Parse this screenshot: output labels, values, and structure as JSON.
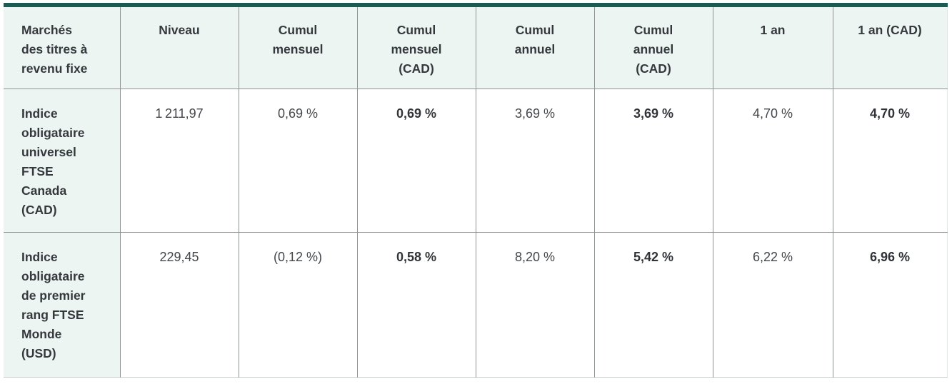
{
  "style": {
    "accent_color": "#1c5b53",
    "header_bg": "#edf5f3",
    "label_col_bg": "#edf5f3",
    "grid_color": "#8f9391",
    "bold_value_columns": [
      "Cumul mensuel (CAD)",
      "Cumul annuel (CAD)",
      "1 an (CAD)"
    ]
  },
  "table": {
    "columns": [
      "Marchés\ndes titres à\nrevenu fixe",
      "Niveau",
      "Cumul\nmensuel",
      "Cumul\nmensuel\n(CAD)",
      "Cumul\nannuel",
      "Cumul\nannuel\n(CAD)",
      "1 an",
      "1 an (CAD)"
    ],
    "rows": [
      {
        "label": "Indice\nobligataire\nuniversel\nFTSE\nCanada\n(CAD)",
        "values": [
          "1 211,97",
          "0,69 %",
          "0,69 %",
          "3,69 %",
          "3,69 %",
          "4,70 %",
          "4,70 %"
        ]
      },
      {
        "label": "Indice\nobligataire\nde premier\nrang FTSE\nMonde\n(USD)",
        "values": [
          "229,45",
          "(0,12 %)",
          "0,58 %",
          "8,20 %",
          "5,42 %",
          "6,22 %",
          "6,96 %"
        ]
      }
    ]
  },
  "chart_data": {
    "type": "table",
    "title": "Marchés des titres à revenu fixe",
    "columns": [
      "Marchés des titres à revenu fixe",
      "Niveau",
      "Cumul mensuel",
      "Cumul mensuel (CAD)",
      "Cumul annuel",
      "Cumul annuel (CAD)",
      "1 an",
      "1 an (CAD)"
    ],
    "rows": [
      [
        "Indice obligataire universel FTSE Canada (CAD)",
        "1 211,97",
        "0,69 %",
        "0,69 %",
        "3,69 %",
        "3,69 %",
        "4,70 %",
        "4,70 %"
      ],
      [
        "Indice obligataire de premier rang FTSE Monde (USD)",
        "229,45",
        "(0,12 %)",
        "0,58 %",
        "8,20 %",
        "5,42 %",
        "6,22 %",
        "6,96 %"
      ]
    ]
  }
}
